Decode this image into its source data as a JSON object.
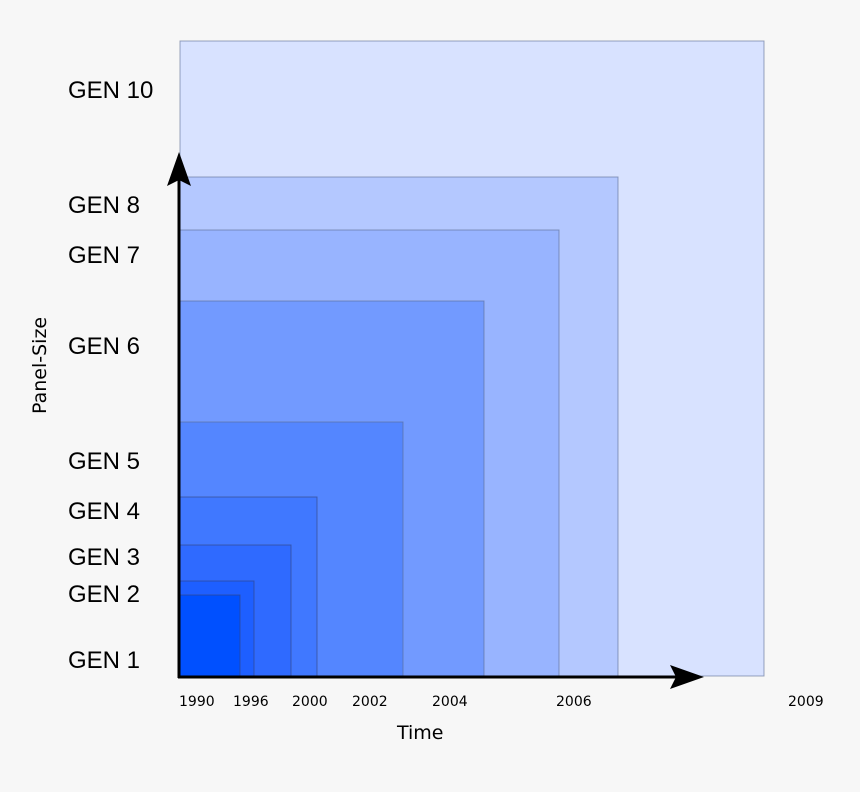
{
  "diagram": {
    "y_axis_title": "Panel-Size",
    "x_axis_title": "Time",
    "generations": [
      {
        "label": "GEN 1",
        "fill": "#0050ff"
      },
      {
        "label": "GEN 2",
        "fill": "#1e5fff"
      },
      {
        "label": "GEN 3",
        "fill": "#2f6aff"
      },
      {
        "label": "GEN 4",
        "fill": "#4078ff"
      },
      {
        "label": "GEN 5",
        "fill": "#5486ff"
      },
      {
        "label": "GEN 6",
        "fill": "#729aff"
      },
      {
        "label": "GEN 7",
        "fill": "#98b4ff"
      },
      {
        "label": "GEN 8",
        "fill": "#b4c8ff"
      },
      {
        "label": "GEN 10",
        "fill": "#d8e2ff"
      }
    ],
    "time_labels": [
      "1990",
      "1996",
      "2000",
      "2002",
      "2004",
      "2006",
      "2009"
    ],
    "colors": {
      "axis": "#000000",
      "rect_stroke": "#5a6a90",
      "background": "#f7f7f7"
    }
  }
}
